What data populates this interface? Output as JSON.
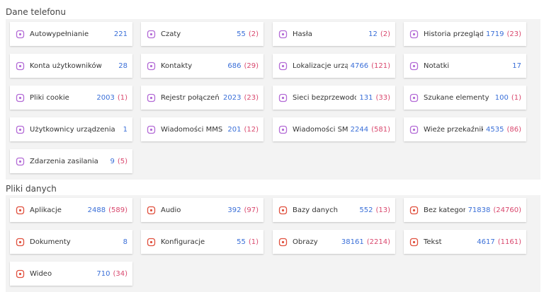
{
  "sections": [
    {
      "title": "Dane telefonu",
      "items": [
        {
          "label": "Autowypełnianie",
          "count": 221
        },
        {
          "label": "Czaty",
          "count": 55,
          "deleted": "(2)"
        },
        {
          "label": "Hasła",
          "count": 12,
          "deleted": "(2)"
        },
        {
          "label": "Historia przegląda...",
          "count": 1719,
          "deleted": "(23)"
        },
        {
          "label": "Konta użytkowników",
          "count": 28
        },
        {
          "label": "Kontakty",
          "count": 686,
          "deleted": "(29)"
        },
        {
          "label": "Lokalizacje urządz...",
          "count": 4766,
          "deleted": "(121)"
        },
        {
          "label": "Notatki",
          "count": 17
        },
        {
          "label": "Pliki cookie",
          "count": 2003,
          "deleted": "(1)"
        },
        {
          "label": "Rejestr połączeń",
          "count": 2023,
          "deleted": "(23)"
        },
        {
          "label": "Sieci bezprzewodowe",
          "count": 131,
          "deleted": "(33)"
        },
        {
          "label": "Szukane elementy",
          "count": 100,
          "deleted": "(1)"
        },
        {
          "label": "Użytkownicy urządzenia",
          "count": 1
        },
        {
          "label": "Wiadomości MMS",
          "count": 201,
          "deleted": "(12)"
        },
        {
          "label": "Wiadomości SMS",
          "count": 2244,
          "deleted": "(581)"
        },
        {
          "label": "Wieże przekaźniko...",
          "count": 4535,
          "deleted": "(86)"
        },
        {
          "label": "Zdarzenia zasilania",
          "count": 9,
          "deleted": "(5)"
        }
      ]
    },
    {
      "title": "Pliki danych",
      "items": [
        {
          "label": "Aplikacje",
          "count": 2488,
          "deleted": "(589)"
        },
        {
          "label": "Audio",
          "count": 392,
          "deleted": "(97)"
        },
        {
          "label": "Bazy danych",
          "count": 552,
          "deleted": "(13)"
        },
        {
          "label": "Bez kategorii",
          "count": 71838,
          "deleted": "(24760)"
        },
        {
          "label": "Dokumenty",
          "count": 8
        },
        {
          "label": "Konfiguracje",
          "count": 55,
          "deleted": "(1)"
        },
        {
          "label": "Obrazy",
          "count": 38161,
          "deleted": "(2214)"
        },
        {
          "label": "Tekst",
          "count": 4617,
          "deleted": "(1161)"
        },
        {
          "label": "Wideo",
          "count": 710,
          "deleted": "(34)"
        }
      ]
    }
  ]
}
